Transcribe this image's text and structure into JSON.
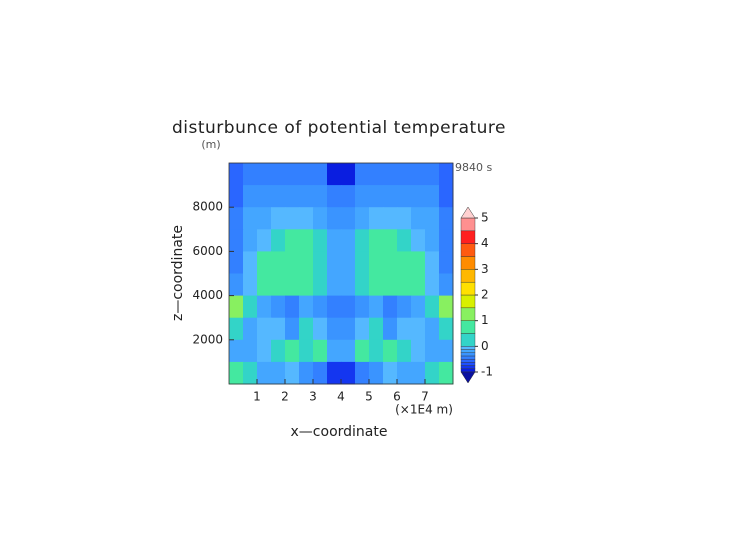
{
  "chart_data": {
    "type": "contour",
    "title": "disturbunce of potential temperature",
    "y_unit_label": "(m)",
    "time_label": "9840 s",
    "xlabel": "x—coordinate",
    "ylabel": "z—coordinate",
    "x_unit_label": "(×1E4 m)",
    "xlim": [
      0,
      8
    ],
    "ylim": [
      0,
      10000
    ],
    "xticks": [
      1,
      2,
      3,
      4,
      5,
      6,
      7
    ],
    "yticks": [
      2000,
      4000,
      6000,
      8000
    ],
    "x": [
      0.25,
      0.75,
      1.25,
      1.75,
      2.25,
      2.75,
      3.25,
      3.75,
      4.25,
      4.75,
      5.25,
      5.75,
      6.25,
      6.75,
      7.25,
      7.75
    ],
    "y": [
      9500,
      8500,
      7500,
      6500,
      5500,
      4500,
      3500,
      2500,
      1500,
      500
    ],
    "z": [
      [
        -0.6,
        -0.4,
        -0.4,
        -0.4,
        -0.4,
        -0.4,
        -0.5,
        -0.9,
        -0.9,
        -0.5,
        -0.4,
        -0.4,
        -0.4,
        -0.4,
        -0.4,
        -0.6
      ],
      [
        -0.6,
        -0.3,
        -0.3,
        -0.3,
        -0.3,
        -0.3,
        -0.3,
        -0.4,
        -0.4,
        -0.3,
        -0.3,
        -0.3,
        -0.3,
        -0.3,
        -0.3,
        -0.6
      ],
      [
        -0.5,
        -0.2,
        -0.2,
        -0.1,
        -0.1,
        -0.1,
        -0.2,
        -0.3,
        -0.3,
        -0.2,
        -0.1,
        -0.1,
        -0.1,
        -0.2,
        -0.2,
        -0.5
      ],
      [
        -0.5,
        -0.2,
        -0.1,
        0.1,
        0.6,
        0.6,
        0.3,
        -0.2,
        -0.2,
        0.3,
        0.6,
        0.6,
        0.1,
        -0.1,
        -0.2,
        -0.5
      ],
      [
        -0.4,
        -0.1,
        0.6,
        0.6,
        0.6,
        0.6,
        0.3,
        -0.2,
        -0.2,
        0.3,
        0.6,
        0.6,
        0.6,
        0.6,
        -0.1,
        -0.4
      ],
      [
        -0.3,
        -0.1,
        0.6,
        0.6,
        0.6,
        0.6,
        0.2,
        -0.2,
        -0.2,
        0.2,
        0.6,
        0.6,
        0.6,
        0.6,
        -0.1,
        -0.3
      ],
      [
        1.1,
        0.1,
        -0.2,
        -0.3,
        -0.4,
        -0.2,
        -0.3,
        -0.4,
        -0.4,
        -0.3,
        -0.2,
        -0.4,
        -0.3,
        -0.2,
        0.1,
        1.1
      ],
      [
        0.2,
        -0.2,
        -0.1,
        -0.1,
        -0.3,
        0.2,
        -0.1,
        -0.3,
        -0.3,
        -0.1,
        0.2,
        -0.3,
        -0.1,
        -0.1,
        -0.2,
        0.2
      ],
      [
        -0.2,
        -0.2,
        -0.1,
        0.1,
        0.6,
        0.2,
        0.6,
        -0.2,
        -0.2,
        0.6,
        0.2,
        0.6,
        0.1,
        -0.1,
        -0.2,
        -0.2
      ],
      [
        0.6,
        0.3,
        -0.2,
        -0.2,
        -0.1,
        -0.3,
        -0.5,
        -0.8,
        -0.8,
        -0.5,
        -0.3,
        -0.1,
        -0.2,
        -0.2,
        0.3,
        0.6
      ]
    ],
    "levels": [
      -1,
      -0.875,
      -0.75,
      -0.625,
      -0.5,
      -0.375,
      -0.25,
      -0.125,
      0,
      0.5,
      1,
      1.5,
      2,
      2.5,
      3,
      3.5,
      4,
      4.5,
      5
    ],
    "colors": [
      "#0a1ee0",
      "#1436f0",
      "#1e50ff",
      "#2a66ff",
      "#3380ff",
      "#3a94ff",
      "#44a6ff",
      "#55b8ff",
      "#33d4c8",
      "#44e8a0",
      "#88f060",
      "#d8f000",
      "#ffe000",
      "#ffb800",
      "#ff8c00",
      "#ff5a10",
      "#ff2020",
      "#ff9090"
    ],
    "under_color": "#0a10a0",
    "over_color": "#ffd0d0",
    "colorbar_ticks": [
      -1,
      0,
      1,
      2,
      3,
      4,
      5
    ]
  }
}
